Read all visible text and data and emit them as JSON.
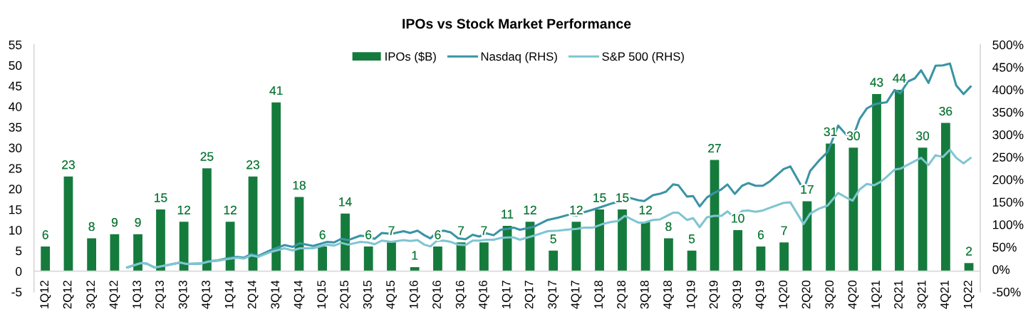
{
  "chart_data": {
    "type": "bar",
    "title": "IPOs vs Stock Market Performance",
    "x": [
      "2012-02-15",
      "2012-05-16",
      "2012-08-16",
      "2012-11-15",
      "2013-02-15",
      "2013-05-16",
      "2013-08-16",
      "2013-11-15",
      "2014-02-15",
      "2014-05-16",
      "2014-08-16",
      "2014-11-15",
      "2015-02-15",
      "2015-05-16",
      "2015-08-16",
      "2015-11-15",
      "2016-02-15",
      "2016-05-16",
      "2016-08-16",
      "2016-11-15",
      "2017-02-15",
      "2017-05-16",
      "2017-08-16",
      "2017-11-15",
      "2018-02-15",
      "2018-05-16",
      "2018-08-16",
      "2018-11-15",
      "2019-02-15",
      "2019-05-16",
      "2019-08-16",
      "2019-11-15",
      "2020-02-15",
      "2020-05-16",
      "2020-08-16",
      "2020-11-15",
      "2021-02-15",
      "2021-05-16",
      "2021-08-16",
      "2021-11-15",
      "2022-02-15"
    ],
    "xlim": [
      "2012-01-01",
      "2022-04-01"
    ],
    "xticks": [
      {
        "value": "2012-02-15",
        "label": "1Q12"
      },
      {
        "value": "2012-05-16",
        "label": "2Q12"
      },
      {
        "value": "2012-08-16",
        "label": "3Q12"
      },
      {
        "value": "2012-11-15",
        "label": "4Q12"
      },
      {
        "value": "2013-02-15",
        "label": "1Q13"
      },
      {
        "value": "2013-05-16",
        "label": "2Q13"
      },
      {
        "value": "2013-08-16",
        "label": "3Q13"
      },
      {
        "value": "2013-11-15",
        "label": "4Q13"
      },
      {
        "value": "2014-02-15",
        "label": "1Q14"
      },
      {
        "value": "2014-05-16",
        "label": "2Q14"
      },
      {
        "value": "2014-08-16",
        "label": "3Q14"
      },
      {
        "value": "2014-11-15",
        "label": "4Q14"
      },
      {
        "value": "2015-02-15",
        "label": "1Q15"
      },
      {
        "value": "2015-05-16",
        "label": "2Q15"
      },
      {
        "value": "2015-08-16",
        "label": "3Q15"
      },
      {
        "value": "2015-11-15",
        "label": "4Q15"
      },
      {
        "value": "2016-02-15",
        "label": "1Q16"
      },
      {
        "value": "2016-05-16",
        "label": "2Q16"
      },
      {
        "value": "2016-08-16",
        "label": "3Q16"
      },
      {
        "value": "2016-11-15",
        "label": "4Q16"
      },
      {
        "value": "2017-02-15",
        "label": "1Q17"
      },
      {
        "value": "2017-05-16",
        "label": "2Q17"
      },
      {
        "value": "2017-08-16",
        "label": "3Q17"
      },
      {
        "value": "2017-11-15",
        "label": "4Q17"
      },
      {
        "value": "2018-02-15",
        "label": "1Q18"
      },
      {
        "value": "2018-05-16",
        "label": "2Q18"
      },
      {
        "value": "2018-08-16",
        "label": "3Q18"
      },
      {
        "value": "2018-11-15",
        "label": "4Q18"
      },
      {
        "value": "2019-02-15",
        "label": "1Q19"
      },
      {
        "value": "2019-05-16",
        "label": "2Q19"
      },
      {
        "value": "2019-08-16",
        "label": "3Q19"
      },
      {
        "value": "2019-11-15",
        "label": "4Q19"
      },
      {
        "value": "2020-02-15",
        "label": "1Q20"
      },
      {
        "value": "2020-05-16",
        "label": "2Q20"
      },
      {
        "value": "2020-08-16",
        "label": "3Q20"
      },
      {
        "value": "2020-11-15",
        "label": "4Q20"
      },
      {
        "value": "2021-02-15",
        "label": "1Q21"
      },
      {
        "value": "2021-05-16",
        "label": "2Q21"
      },
      {
        "value": "2021-08-16",
        "label": "3Q21"
      },
      {
        "value": "2021-11-15",
        "label": "4Q21"
      },
      {
        "value": "2022-02-15",
        "label": "1Q22"
      }
    ],
    "ylim": [
      -5,
      55
    ],
    "yticks": [
      -5,
      0,
      5,
      10,
      15,
      20,
      25,
      30,
      35,
      40,
      45,
      50,
      55
    ],
    "y2lim": [
      -50,
      500
    ],
    "y2ticks": [
      {
        "value": -50,
        "label": "-50%"
      },
      {
        "value": 0,
        "label": "0%"
      },
      {
        "value": 50,
        "label": "50%"
      },
      {
        "value": 100,
        "label": "100%"
      },
      {
        "value": 150,
        "label": "150%"
      },
      {
        "value": 200,
        "label": "200%"
      },
      {
        "value": 250,
        "label": "250%"
      },
      {
        "value": 300,
        "label": "300%"
      },
      {
        "value": 350,
        "label": "350%"
      },
      {
        "value": 400,
        "label": "400%"
      },
      {
        "value": 450,
        "label": "450%"
      },
      {
        "value": 500,
        "label": "500%"
      }
    ],
    "legend": "top",
    "series": [
      {
        "name": "IPOs ($B)",
        "color": "#157b3d",
        "values": [
          6,
          23,
          8,
          9,
          9,
          15,
          12,
          25,
          12,
          23,
          41,
          18,
          6,
          14,
          6,
          7,
          1,
          6,
          7,
          7,
          11,
          12,
          5,
          12,
          15,
          15,
          12,
          8,
          5,
          27,
          10,
          6,
          7,
          17,
          31,
          30,
          43,
          44,
          30,
          36,
          2
        ],
        "value_labels": [
          "6",
          "23",
          "8",
          "9",
          "9",
          "15",
          "12",
          "25",
          "12",
          "23",
          "41",
          "18",
          "6",
          "14",
          "6",
          "7",
          "1",
          "6",
          "7",
          "7",
          "11",
          "12",
          "5",
          "12",
          "15",
          "15",
          "12",
          "8",
          "5",
          "27",
          "10",
          "6",
          "7",
          "17",
          "31",
          "30",
          "43",
          "44",
          "30",
          "36",
          "2"
        ]
      },
      {
        "name": "Nasdaq (RHS)",
        "type": "line",
        "axis": "y2",
        "color": "#3a94a5",
        "x": [
          "2013-01-03",
          "2013-02-27",
          "2013-03-21",
          "2013-04-23",
          "2013-06-06",
          "2013-08-02",
          "2013-08-27",
          "2013-10-23",
          "2013-11-21",
          "2013-12-28",
          "2014-02-06",
          "2014-03-13",
          "2014-04-11",
          "2014-05-09",
          "2014-06-07",
          "2014-07-22",
          "2014-09-18",
          "2014-10-20",
          "2014-11-18",
          "2015-01-09",
          "2015-03-06",
          "2015-04-03",
          "2015-05-01",
          "2015-05-27",
          "2015-07-15",
          "2015-08-13",
          "2015-09-10",
          "2015-10-08",
          "2015-11-15",
          "2016-01-02",
          "2016-01-28",
          "2016-02-26",
          "2016-03-24",
          "2016-04-17",
          "2016-05-11",
          "2016-06-09",
          "2016-07-07",
          "2016-08-05",
          "2016-09-03",
          "2016-10-01",
          "2016-10-27",
          "2016-11-24",
          "2016-12-23",
          "2017-01-20",
          "2017-02-18",
          "2017-03-12",
          "2017-04-06",
          "2017-06-01",
          "2017-07-25",
          "2017-09-04",
          "2017-10-19",
          "2017-11-17",
          "2017-12-15",
          "2018-01-20",
          "2018-02-28",
          "2018-04-06",
          "2018-04-28",
          "2018-05-26",
          "2018-07-18",
          "2018-08-11",
          "2018-09-14",
          "2018-10-11",
          "2018-11-05",
          "2018-12-03",
          "2018-12-24",
          "2019-01-27",
          "2019-02-20",
          "2019-03-18",
          "2019-04-16",
          "2019-05-14",
          "2019-06-12",
          "2019-07-06",
          "2019-08-04",
          "2019-09-02",
          "2019-09-27",
          "2019-10-25",
          "2019-11-23",
          "2019-12-21",
          "2020-02-13",
          "2020-03-11",
          "2020-05-02",
          "2020-05-28",
          "2020-07-02",
          "2020-08-05",
          "2020-09-16",
          "2020-10-14",
          "2020-11-12",
          "2020-12-10",
          "2021-01-07",
          "2021-02-05",
          "2021-03-03",
          "2021-03-27",
          "2021-04-27",
          "2021-05-20",
          "2021-06-19",
          "2021-07-16",
          "2021-08-10",
          "2021-09-08",
          "2021-10-06",
          "2021-11-04",
          "2021-12-02",
          "2021-12-27",
          "2022-01-25",
          "2022-02-22"
        ],
        "values": [
          4,
          14,
          13,
          4,
          9,
          15,
          12,
          13,
          18,
          20,
          25,
          28,
          26,
          34,
          30,
          42,
          54,
          50,
          58,
          52,
          61,
          60,
          68,
          65,
          75,
          73,
          68,
          81,
          79,
          85,
          81,
          86,
          76,
          69,
          82,
          86,
          82,
          69,
          67,
          77,
          73,
          80,
          76,
          88,
          90,
          93,
          88,
          95,
          110,
          115,
          122,
          120,
          127,
          133,
          140,
          147,
          149,
          162,
          154,
          152,
          165,
          168,
          173,
          189,
          187,
          162,
          163,
          140,
          160,
          170,
          178,
          189,
          168,
          186,
          192,
          186,
          186,
          196,
          223,
          229,
          177,
          219,
          242,
          261,
          320,
          302,
          292,
          335,
          358,
          367,
          370,
          372,
          399,
          392,
          418,
          425,
          443,
          415,
          453,
          454,
          458,
          409,
          390,
          407
        ]
      },
      {
        "name": "S&P 500 (RHS)",
        "type": "line",
        "axis": "y2",
        "color": "#7fc5d1",
        "x": [
          "2013-01-03",
          "2013-02-27",
          "2013-03-21",
          "2013-04-23",
          "2013-06-06",
          "2013-08-02",
          "2013-08-27",
          "2013-10-23",
          "2013-11-21",
          "2013-12-28",
          "2014-02-06",
          "2014-03-13",
          "2014-04-11",
          "2014-05-09",
          "2014-06-07",
          "2014-07-22",
          "2014-09-18",
          "2014-10-20",
          "2014-11-18",
          "2015-01-09",
          "2015-03-06",
          "2015-04-03",
          "2015-05-01",
          "2015-05-27",
          "2015-07-15",
          "2015-08-13",
          "2015-09-10",
          "2015-10-08",
          "2015-11-15",
          "2016-01-02",
          "2016-01-28",
          "2016-02-26",
          "2016-03-24",
          "2016-04-17",
          "2016-05-11",
          "2016-06-09",
          "2016-07-07",
          "2016-08-05",
          "2016-09-03",
          "2016-10-01",
          "2016-10-27",
          "2016-11-24",
          "2016-12-23",
          "2017-01-20",
          "2017-02-18",
          "2017-03-12",
          "2017-04-06",
          "2017-06-01",
          "2017-07-25",
          "2017-09-04",
          "2017-10-19",
          "2017-11-17",
          "2017-12-15",
          "2018-01-20",
          "2018-02-28",
          "2018-04-06",
          "2018-04-28",
          "2018-05-26",
          "2018-07-18",
          "2018-08-11",
          "2018-09-14",
          "2018-10-11",
          "2018-11-05",
          "2018-12-03",
          "2018-12-24",
          "2019-01-27",
          "2019-02-20",
          "2019-03-18",
          "2019-04-16",
          "2019-05-14",
          "2019-06-12",
          "2019-07-06",
          "2019-08-04",
          "2019-09-02",
          "2019-09-27",
          "2019-10-25",
          "2019-11-23",
          "2019-12-21",
          "2020-02-13",
          "2020-03-11",
          "2020-05-02",
          "2020-05-28",
          "2020-07-02",
          "2020-08-05",
          "2020-09-16",
          "2020-10-14",
          "2020-11-12",
          "2020-12-10",
          "2021-01-07",
          "2021-02-05",
          "2021-03-03",
          "2021-03-27",
          "2021-04-27",
          "2021-05-20",
          "2021-06-19",
          "2021-07-16",
          "2021-08-10",
          "2021-09-08",
          "2021-10-06",
          "2021-11-04",
          "2021-12-02",
          "2021-12-27",
          "2022-01-25",
          "2022-02-22"
        ],
        "values": [
          4,
          14,
          13,
          4,
          9,
          15,
          12,
          13,
          17,
          19,
          23,
          26,
          24,
          31,
          28,
          38,
          47,
          42,
          47,
          47,
          55,
          53,
          59,
          55,
          61,
          60,
          56,
          64,
          61,
          65,
          63,
          65,
          55,
          51,
          63,
          64,
          61,
          55,
          54,
          64,
          64,
          66,
          66,
          70,
          71,
          71,
          66,
          75,
          85,
          86,
          89,
          90,
          93,
          93,
          101,
          106,
          107,
          119,
          104,
          104,
          110,
          111,
          118,
          126,
          126,
          110,
          114,
          94,
          116,
          119,
          119,
          129,
          114,
          130,
          131,
          128,
          131,
          137,
          148,
          149,
          101,
          124,
          135,
          142,
          170,
          161,
          153,
          178,
          190,
          187,
          195,
          206,
          222,
          224,
          233,
          241,
          248,
          232,
          254,
          250,
          266,
          248,
          236,
          248
        ]
      }
    ]
  }
}
